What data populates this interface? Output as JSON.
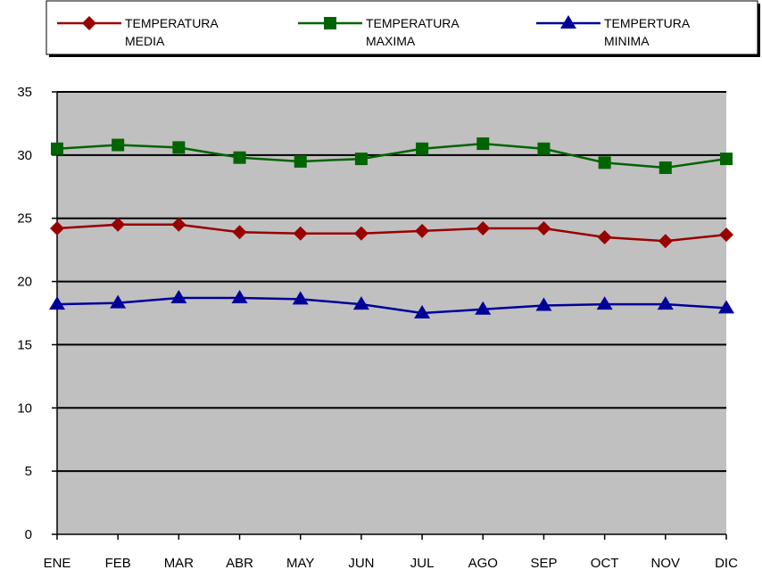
{
  "chart_data": {
    "type": "line",
    "categories": [
      "ENE",
      "FEB",
      "MAR",
      "ABR",
      "MAY",
      "JUN",
      "JUL",
      "AGO",
      "SEP",
      "OCT",
      "NOV",
      "DIC"
    ],
    "ylim": [
      0,
      35
    ],
    "yticks": [
      "0",
      "5",
      "10",
      "15",
      "20",
      "25",
      "30",
      "35"
    ],
    "grid": true,
    "legend_position": "top",
    "plot_background": "#c0c0c0",
    "series": [
      {
        "name_lines": [
          "TEMPERATURA",
          "MEDIA"
        ],
        "color": "#990000",
        "marker": "diamond",
        "values": [
          24.2,
          24.5,
          24.5,
          23.9,
          23.8,
          23.8,
          24.0,
          24.2,
          24.2,
          23.5,
          23.2,
          23.7
        ]
      },
      {
        "name_lines": [
          "TEMPERATURA",
          "MAXIMA"
        ],
        "color": "#006400",
        "marker": "square",
        "values": [
          30.5,
          30.8,
          30.6,
          29.8,
          29.5,
          29.7,
          30.5,
          30.9,
          30.5,
          29.4,
          29.0,
          29.7
        ]
      },
      {
        "name_lines": [
          "TEMPERTURA",
          "MINIMA"
        ],
        "color": "#000099",
        "marker": "triangle",
        "values": [
          18.2,
          18.3,
          18.7,
          18.7,
          18.6,
          18.2,
          17.5,
          17.8,
          18.1,
          18.2,
          18.2,
          17.9
        ]
      }
    ]
  }
}
